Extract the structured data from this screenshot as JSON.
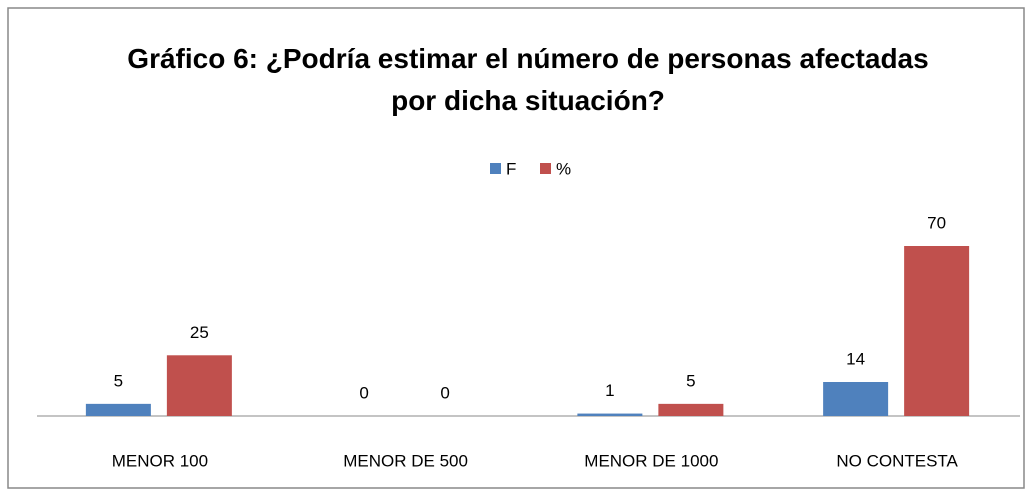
{
  "chart_data": {
    "type": "bar",
    "title": "Gráfico 6: ¿Podría estimar el número de personas afectadas por dicha situación?",
    "categories": [
      "MENOR 100",
      "MENOR DE 500",
      "MENOR DE 1000",
      "NO CONTESTA"
    ],
    "series": [
      {
        "name": "F",
        "color": "#4f81bd",
        "values": [
          5,
          0,
          1,
          14
        ]
      },
      {
        "name": "%",
        "color": "#c0504d",
        "values": [
          25,
          0,
          5,
          70
        ]
      }
    ],
    "legend": "top"
  }
}
